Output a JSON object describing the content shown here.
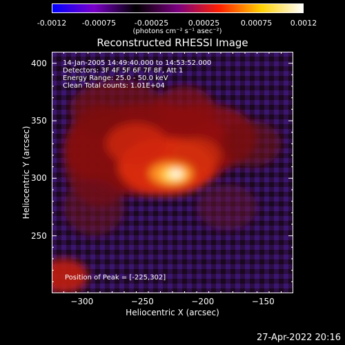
{
  "colorbar": {
    "ticks": [
      "-0.0012",
      "-0.00075",
      "-0.00025",
      "0.00025",
      "0.00075",
      "0.0012"
    ],
    "tick_values": [
      -0.0012,
      -0.00075,
      -0.00025,
      0.00025,
      0.00075,
      0.0012
    ],
    "units": "(photons cm⁻² s⁻¹ asec⁻²)",
    "colors": [
      "#0000ff",
      "#7a00c8",
      "#000000",
      "#7a0080",
      "#ff2000",
      "#ffd000",
      "#ffffff"
    ]
  },
  "chart_data": {
    "type": "heatmap",
    "title": "Reconstructed RHESSI Image",
    "xlabel": "Heliocentric X (arcsec)",
    "ylabel": "Heliocentric Y (arcsec)",
    "xlim": [
      -325,
      -125
    ],
    "ylim": [
      200,
      410
    ],
    "x_ticks": [
      -300,
      -250,
      -200,
      -150
    ],
    "x_tick_labels": [
      "−300",
      "−250",
      "−200",
      "−150"
    ],
    "y_ticks": [
      250,
      300,
      350,
      400
    ],
    "y_tick_labels": [
      "250",
      "300",
      "350",
      "400"
    ],
    "peak": [
      -225,
      302
    ],
    "info_lines": [
      "14-Jan-2005 14:49:40.000 to 14:53:52.000",
      "Detectors: 3F 4F 5F 6F 7F 8F, Att 1",
      "Energy Range: 25.0 - 50.0 keV",
      "Clean     Total counts: 1.01E+04"
    ],
    "peak_label": "Position of Peak = [-225,302]"
  },
  "footer": {
    "date": "27-Apr-2022 20:16"
  }
}
